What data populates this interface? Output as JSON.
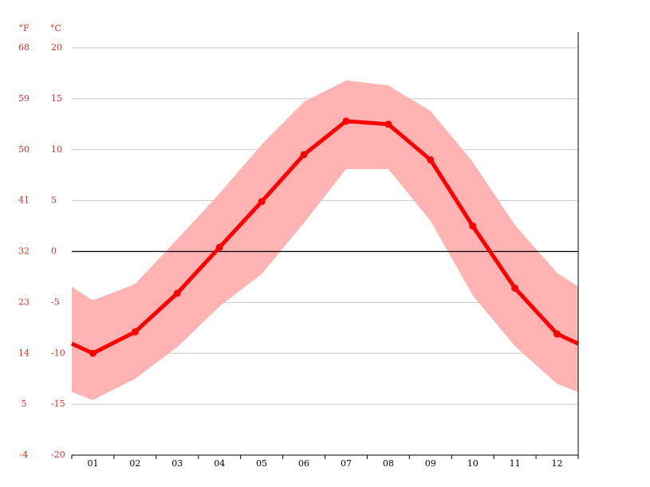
{
  "chart_data": {
    "type": "line",
    "ylabel": "°C",
    "y2label": "°F",
    "categories": [
      "01",
      "02",
      "03",
      "04",
      "05",
      "06",
      "07",
      "08",
      "09",
      "10",
      "11",
      "12"
    ],
    "series": [
      {
        "color": "#ffb3b3",
        "values": [
          -4.8,
          -3.2,
          1.2,
          5.7,
          10.5,
          14.7,
          16.8,
          16.3,
          13.8,
          8.8,
          2.6,
          -2.1
        ]
      },
      {
        "color": "#ffb3b3",
        "values": [
          -14.6,
          -12.5,
          -9.4,
          -5.4,
          -2.2,
          2.8,
          8.1,
          8.1,
          3.0,
          -4.3,
          -9.3,
          -13.0
        ]
      },
      {
        "color": "#ff0000",
        "values": [
          -10.0,
          -7.9,
          -4.1,
          0.4,
          4.9,
          9.5,
          12.8,
          12.5,
          9.0,
          2.5,
          -3.6,
          -8.1
        ]
      }
    ],
    "ylim": [
      -20,
      20
    ],
    "yticks": [
      -20,
      -15,
      -10,
      -5,
      0,
      5,
      10,
      15,
      20
    ],
    "y2lim": [
      -4,
      68
    ],
    "y2ticks": [
      -4,
      5,
      14,
      23,
      32,
      41,
      50,
      59,
      68
    ],
    "grid": true,
    "tick_label_color": "#d9302c"
  }
}
